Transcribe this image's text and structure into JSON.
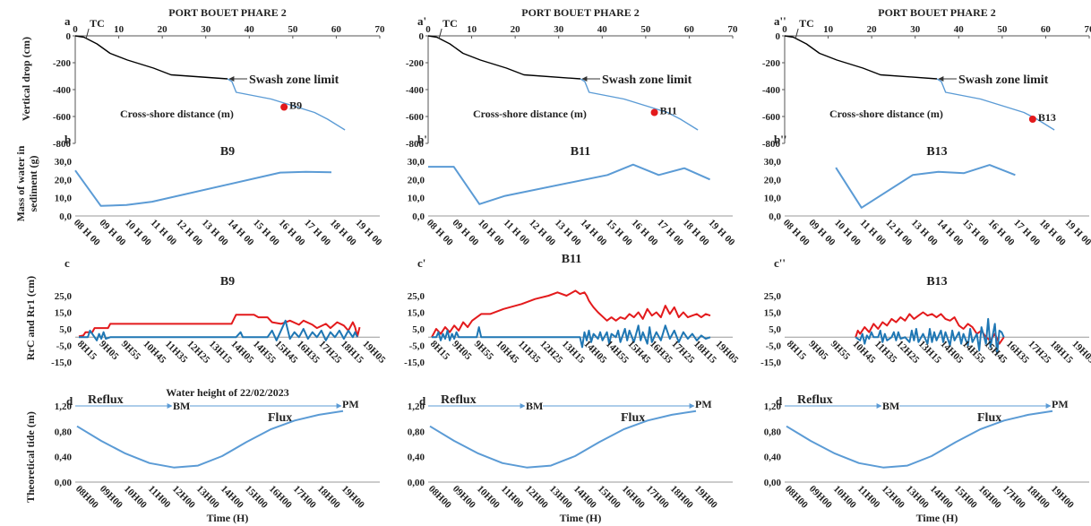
{
  "figure": {
    "station": "PORT BOUET PHARE 2",
    "row_y_labels": [
      "Vertical drop (cm)",
      "Mass of water in sediment (g)",
      "RrC and Rr1 (cm)",
      "Theoretical tide (m)"
    ],
    "colors": {
      "profile_land": "#000000",
      "profile_sea": "#5b9bd5",
      "red": "#e31a1c",
      "blue": "#1f77b4",
      "light_blue": "#5b9bd5",
      "marker": "#e31a1c"
    },
    "hour_ticks_b": [
      "08 H 00",
      "09 H 00",
      "10 H 00",
      "11 H 00",
      "12 H 00",
      "13 H 00",
      "14 H 00",
      "15 H 00",
      "16 H 00",
      "17 H 00",
      "18 H 00",
      "19 H 00"
    ],
    "time_ticks_c": [
      "8H15",
      "9H05",
      "9H55",
      "10H45",
      "11H35",
      "12H25",
      "13H15",
      "14H05",
      "14H55",
      "15H45",
      "16H35",
      "17H25",
      "18H15",
      "19H05"
    ],
    "hour_ticks_d": [
      "08H00",
      "09H00",
      "10H00",
      "11H00",
      "12H00",
      "13H00",
      "14H00",
      "15H00",
      "16H00",
      "17H00",
      "18H00",
      "19H00"
    ],
    "columns": [
      {
        "letter_a": "a",
        "letter_b": "b",
        "letter_c": "c",
        "letter_d": "d",
        "beacon": "B9",
        "show_water_height": true
      },
      {
        "letter_a": "a'",
        "letter_b": "b'",
        "letter_c": "c'",
        "letter_d": "d",
        "beacon": "B11",
        "show_water_height": false
      },
      {
        "letter_a": "a'' ",
        "letter_b": "b''",
        "letter_c": "c''",
        "letter_d": "d",
        "beacon": "B13",
        "show_water_height": false
      }
    ]
  },
  "chart_data": [
    {
      "panel": "profile",
      "type": "line",
      "title": "PORT BOUET PHARE 2",
      "xlabel": "Cross-shore distance (m)",
      "ylabel": "Vertical drop (cm)",
      "xlim": [
        0,
        70
      ],
      "ylim": [
        -800,
        0
      ],
      "x_ticks": [
        0,
        10,
        20,
        30,
        40,
        50,
        60,
        70
      ],
      "y_ticks": [
        0,
        -200,
        -400,
        -600,
        -800
      ],
      "series": [
        {
          "segment": "land",
          "x": [
            0,
            2,
            5,
            8,
            12,
            18,
            22,
            35
          ],
          "y": [
            0,
            -10,
            -60,
            -130,
            -180,
            -240,
            -290,
            -320
          ]
        },
        {
          "segment": "sea",
          "x": [
            35,
            36,
            37,
            45,
            50,
            55,
            58,
            62
          ],
          "y": [
            -320,
            -340,
            -420,
            -470,
            -520,
            -570,
            -620,
            -700
          ]
        }
      ],
      "annotations": {
        "tc": "TC",
        "tc_x": 2.5,
        "swash_label": "Swash zone limit",
        "swash_x": 35,
        "swash_y": -320
      },
      "markers": [
        {
          "label": "B9",
          "x": 48,
          "y": -530
        },
        {
          "label": "B11",
          "x": 52,
          "y": -570
        },
        {
          "label": "B13",
          "x": 57,
          "y": -620
        }
      ]
    },
    {
      "panel": "water_mass",
      "type": "line",
      "ylabel": "Mass of water in sediment (g)",
      "ylim": [
        0,
        30
      ],
      "y_ticks": [
        "0,0",
        "10,0",
        "20,0",
        "30,0"
      ],
      "categories": [
        "08 H 00",
        "09 H 00",
        "10 H 00",
        "11 H 00",
        "12 H 00",
        "13 H 00",
        "14 H 00",
        "15 H 00",
        "16 H 00",
        "17 H 00",
        "18 H 00",
        "19 H 00"
      ],
      "series": [
        {
          "name": "B9",
          "x": [
            0,
            1,
            2,
            3,
            8,
            9,
            10
          ],
          "values": [
            25,
            5.5,
            6,
            7.8,
            23.8,
            24.2,
            24
          ]
        },
        {
          "name": "B11",
          "x": [
            0,
            1,
            2,
            3,
            7,
            8,
            9,
            10,
            11
          ],
          "values": [
            27,
            27,
            6.5,
            11,
            22.5,
            28.2,
            22.5,
            26.2,
            20
          ]
        },
        {
          "name": "B13",
          "x": [
            2,
            3,
            5,
            6,
            7,
            8,
            9
          ],
          "values": [
            26.5,
            4.5,
            22.5,
            24.2,
            23.5,
            28,
            22.5
          ]
        }
      ]
    },
    {
      "panel": "rrc_rr1",
      "type": "line",
      "ylabel": "RrC and Rr1 (cm)",
      "ylim": [
        -15,
        25
      ],
      "y_ticks": [
        "-15,0",
        "-5,0",
        "5,0",
        "15,0",
        "25,0"
      ],
      "x_unit": "minutes from 08H15",
      "x_range": [
        0,
        650
      ],
      "series_groups": [
        {
          "beacon": "B9",
          "red": {
            "x": [
              0,
              10,
              15,
              30,
              35,
              65,
              70,
              120,
              180,
              240,
              340,
              350,
              390,
              400,
              420,
              430,
              450,
              470,
              490,
              500,
              520,
              530,
              550,
              560,
              575,
              590,
              600,
              610,
              615,
              620,
              625
            ],
            "y": [
              0.5,
              1,
              3,
              3,
              5.5,
              5.5,
              8,
              8,
              8,
              8,
              8,
              13.5,
              13.5,
              12,
              12,
              9,
              8,
              10,
              7.5,
              10,
              7.5,
              5.5,
              8,
              5.5,
              9,
              7,
              4,
              9,
              6,
              0.5,
              6
            ]
          },
          "blue": {
            "x": [
              0,
              20,
              25,
              40,
              45,
              50,
              55,
              60,
              70,
              350,
              360,
              365,
              420,
              430,
              440,
              450,
              460,
              470,
              480,
              490,
              500,
              510,
              520,
              530,
              540,
              550,
              560,
              570,
              580,
              590,
              600,
              610,
              615,
              620
            ],
            "y": [
              0,
              0,
              4,
              -2,
              2,
              -1,
              3,
              -1,
              0,
              0,
              3,
              0,
              0,
              4,
              -2,
              4,
              10,
              -1,
              3,
              0,
              5,
              -1,
              3,
              0,
              4,
              -2,
              3,
              0,
              4,
              -1,
              4,
              0,
              3,
              0
            ]
          }
        },
        {
          "beacon": "B11",
          "red": {
            "x": [
              0,
              10,
              20,
              30,
              40,
              50,
              60,
              70,
              80,
              90,
              110,
              130,
              160,
              200,
              230,
              260,
              280,
              300,
              320,
              330,
              340,
              345,
              350,
              355,
              360,
              370,
              390,
              400,
              410,
              420,
              430,
              440,
              450,
              460,
              470,
              480,
              490,
              500,
              510,
              520,
              530,
              540,
              550,
              560,
              570,
              580,
              590,
              600,
              610,
              620
            ],
            "y": [
              0,
              5,
              2,
              6,
              3,
              7,
              4,
              9,
              6,
              10,
              14,
              14,
              17,
              20,
              23,
              25,
              27,
              25,
              28,
              26,
              27,
              25,
              22,
              20,
              18,
              15,
              10,
              12,
              10,
              12,
              11,
              14,
              12,
              15,
              11,
              17,
              13,
              15,
              12,
              19,
              14,
              18,
              12,
              15,
              12,
              13,
              14,
              12,
              14,
              13
            ]
          },
          "blue": {
            "x": [
              0,
              10,
              15,
              20,
              25,
              30,
              35,
              40,
              45,
              50,
              55,
              60,
              70,
              100,
              105,
              110,
              330,
              335,
              340,
              345,
              350,
              355,
              360,
              370,
              375,
              380,
              390,
              395,
              400,
              410,
              415,
              420,
              430,
              435,
              440,
              450,
              460,
              465,
              470,
              480,
              485,
              490,
              500,
              510,
              520,
              530,
              540,
              550,
              560,
              570,
              580,
              590,
              600,
              610,
              620
            ],
            "y": [
              0,
              0,
              3,
              -2,
              2,
              -1,
              4,
              -2,
              2,
              -1,
              3,
              0,
              0,
              0,
              6,
              0,
              0,
              -6,
              3,
              -2,
              4,
              -3,
              2,
              -1,
              3,
              -2,
              3,
              -4,
              2,
              0,
              4,
              -3,
              5,
              -2,
              4,
              -3,
              7,
              -2,
              3,
              -4,
              6,
              -3,
              3,
              -2,
              7,
              -1,
              4,
              -3,
              3,
              -1,
              2,
              -2,
              1,
              -1,
              0
            ]
          }
        },
        {
          "beacon": "B13",
          "red": {
            "x": [
              150,
              155,
              160,
              170,
              180,
              190,
              200,
              210,
              220,
              230,
              240,
              250,
              260,
              270,
              280,
              290,
              300,
              310,
              320,
              330,
              340,
              350,
              360,
              370,
              380,
              390,
              400,
              410,
              420,
              430,
              440,
              450,
              460,
              470,
              480
            ],
            "y": [
              0,
              4,
              2,
              6,
              3,
              8,
              5,
              9,
              7,
              11,
              9,
              12,
              10,
              14,
              11,
              13,
              15,
              13,
              14,
              12,
              14,
              11,
              10,
              12,
              7,
              5,
              8,
              6,
              2,
              4,
              0,
              -2,
              2,
              -4,
              0
            ]
          },
          "blue": {
            "x": [
              150,
              160,
              165,
              170,
              175,
              180,
              185,
              190,
              200,
              205,
              210,
              215,
              220,
              230,
              235,
              240,
              245,
              250,
              260,
              270,
              275,
              280,
              285,
              290,
              300,
              310,
              315,
              320,
              325,
              330,
              340,
              345,
              350,
              360,
              365,
              370,
              380,
              385,
              390,
              400,
              405,
              410,
              420,
              425,
              430,
              440,
              445,
              450,
              460,
              465,
              470,
              475,
              480
            ],
            "y": [
              0,
              -2,
              2,
              -4,
              1,
              -1,
              3,
              0,
              0,
              4,
              -3,
              2,
              -2,
              0,
              3,
              -2,
              3,
              -1,
              0,
              -3,
              4,
              -2,
              5,
              -3,
              2,
              -4,
              5,
              -3,
              3,
              -2,
              4,
              -3,
              3,
              -5,
              4,
              -2,
              3,
              -4,
              2,
              -5,
              5,
              -3,
              2,
              -8,
              6,
              -4,
              11,
              -6,
              8,
              -10,
              4,
              3,
              0
            ]
          }
        }
      ]
    },
    {
      "panel": "tide",
      "type": "line",
      "title": "Water height of  22/02/2023",
      "xlabel": "Time (H)",
      "ylabel": "Theoretical tide (m)",
      "ylim": [
        0,
        1.2
      ],
      "y_ticks": [
        "0,00",
        "0,40",
        "0,80",
        "1,20"
      ],
      "categories": [
        "08H00",
        "09H00",
        "10H00",
        "11H00",
        "12H00",
        "13H00",
        "14H00",
        "15H00",
        "16H00",
        "17H00",
        "18H00",
        "19H00"
      ],
      "values": [
        0.88,
        0.65,
        0.45,
        0.3,
        0.23,
        0.26,
        0.41,
        0.63,
        0.83,
        0.97,
        1.06,
        1.12
      ],
      "reflux_label": "Reflux",
      "flux_label": "Flux",
      "bm_label": "BM",
      "pm_label": "PM",
      "bm_index": 4,
      "pm_index": 11
    }
  ]
}
